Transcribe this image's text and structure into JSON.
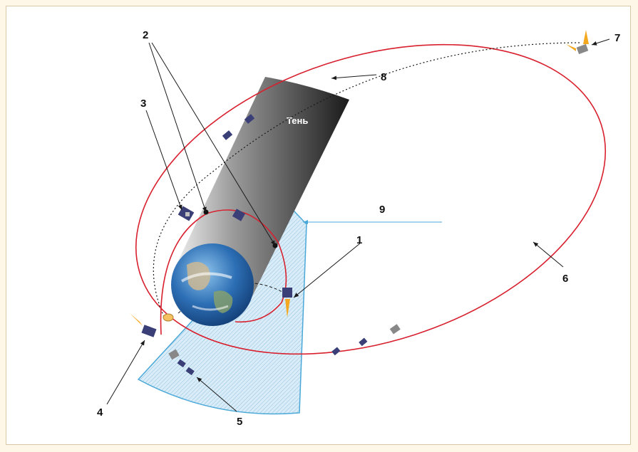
{
  "shadow_label": "Тень",
  "labels": {
    "n1": "1",
    "n2": "2",
    "n3": "3",
    "n4": "4",
    "n5": "5",
    "n6": "6",
    "n7": "7",
    "n8": "8",
    "n9": "9"
  },
  "colors": {
    "orbit": "#d8202e",
    "pointer": "#1a1a1a",
    "sector_stroke": "#4aa8d8",
    "sector_fill": "#cfe6f3",
    "flame": "#f4a820",
    "background": "#fef6e6"
  },
  "icons": [
    "earth-icon",
    "satellite-icon",
    "engine-flame-icon"
  ]
}
